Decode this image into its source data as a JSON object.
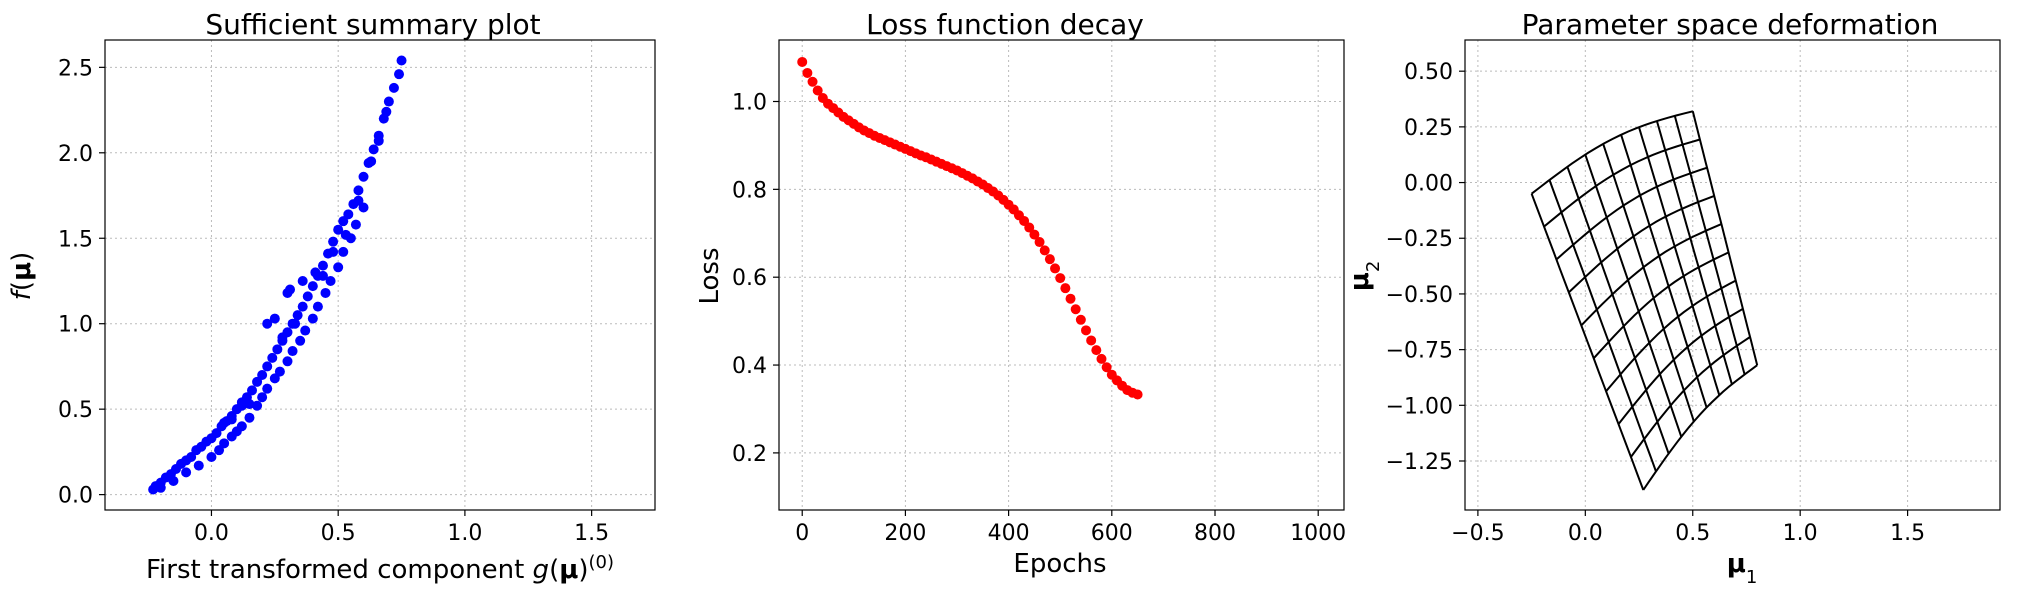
{
  "chart_data": [
    {
      "type": "scatter",
      "title": "Sufficient summary plot",
      "xlabel": "First transformed component g(μ)^(0)",
      "ylabel": "f(μ)",
      "xlim": [
        -0.42,
        1.75
      ],
      "ylim": [
        -0.09,
        2.66
      ],
      "xticks": [
        0.0,
        0.5,
        1.0,
        1.5
      ],
      "xticklabels": [
        "0.0",
        "0.5",
        "1.0",
        "1.5"
      ],
      "yticks": [
        0.0,
        0.5,
        1.0,
        1.5,
        2.0,
        2.5
      ],
      "yticklabels": [
        "0.0",
        "0.5",
        "1.0",
        "1.5",
        "2.0",
        "2.5"
      ],
      "grid": true,
      "color": "#0000ff",
      "series": [
        {
          "x": [
            -0.23,
            -0.22,
            -0.2,
            -0.18,
            -0.16,
            -0.14,
            -0.12,
            -0.1,
            -0.08,
            -0.06,
            -0.04,
            -0.02,
            0.0,
            0.02,
            0.04,
            0.06,
            0.08,
            0.1,
            0.12,
            0.14,
            0.16,
            0.18,
            0.2,
            0.22,
            0.24,
            0.26,
            0.28,
            0.3,
            0.32,
            0.34,
            0.36,
            0.38,
            0.4,
            0.42,
            0.44,
            0.46,
            0.48,
            0.5,
            0.52,
            0.54,
            0.56,
            0.58,
            0.6,
            0.62,
            0.64,
            0.66,
            0.68,
            0.7,
            0.72,
            0.74,
            0.75,
            -0.2,
            -0.15,
            -0.1,
            -0.05,
            0.0,
            0.03,
            0.05,
            0.08,
            0.1,
            0.12,
            0.15,
            0.18,
            0.2,
            0.22,
            0.25,
            0.27,
            0.3,
            0.32,
            0.35,
            0.37,
            0.4,
            0.42,
            0.45,
            0.47,
            0.5,
            0.52,
            0.55,
            0.57,
            0.6,
            0.3,
            0.31,
            0.22,
            0.25,
            0.36,
            0.05,
            0.08,
            0.12,
            0.15,
            0.28,
            0.33,
            0.41,
            0.44,
            0.48,
            0.53,
            0.58,
            0.63,
            0.66,
            0.69
          ],
          "y": [
            0.03,
            0.05,
            0.07,
            0.1,
            0.12,
            0.15,
            0.18,
            0.2,
            0.22,
            0.26,
            0.28,
            0.31,
            0.33,
            0.36,
            0.4,
            0.43,
            0.46,
            0.5,
            0.54,
            0.57,
            0.61,
            0.66,
            0.7,
            0.75,
            0.8,
            0.85,
            0.9,
            0.95,
            1.0,
            1.05,
            1.1,
            1.16,
            1.22,
            1.28,
            1.34,
            1.41,
            1.48,
            1.55,
            1.6,
            1.64,
            1.7,
            1.78,
            1.86,
            1.94,
            2.02,
            2.1,
            2.2,
            2.3,
            2.38,
            2.46,
            2.54,
            0.04,
            0.08,
            0.13,
            0.17,
            0.22,
            0.26,
            0.3,
            0.34,
            0.37,
            0.4,
            0.45,
            0.52,
            0.57,
            0.62,
            0.68,
            0.72,
            0.78,
            0.84,
            0.9,
            0.96,
            1.03,
            1.1,
            1.18,
            1.25,
            1.33,
            1.42,
            1.5,
            1.58,
            1.68,
            1.18,
            1.2,
            1.0,
            1.03,
            1.25,
            0.42,
            0.44,
            0.52,
            0.53,
            0.92,
            1.0,
            1.3,
            1.28,
            1.42,
            1.52,
            1.72,
            1.95,
            2.07,
            2.24
          ]
        }
      ]
    },
    {
      "type": "scatter",
      "title": "Loss function decay",
      "xlabel": "Epochs",
      "ylabel": "Loss",
      "xlim": [
        -45,
        1050
      ],
      "ylim": [
        0.07,
        1.14
      ],
      "xticks": [
        0,
        200,
        400,
        600,
        800,
        1000
      ],
      "xticklabels": [
        "0",
        "200",
        "400",
        "600",
        "800",
        "1000"
      ],
      "yticks": [
        0.2,
        0.4,
        0.6,
        0.8,
        1.0
      ],
      "yticklabels": [
        "0.2",
        "0.4",
        "0.6",
        "0.8",
        "1.0"
      ],
      "grid": true,
      "color": "#ff0000",
      "series": [
        {
          "x": [
            0,
            10,
            20,
            30,
            40,
            50,
            60,
            70,
            80,
            90,
            100,
            110,
            120,
            130,
            140,
            150,
            160,
            170,
            180,
            190,
            200,
            210,
            220,
            230,
            240,
            250,
            260,
            270,
            280,
            290,
            300,
            310,
            320,
            330,
            340,
            350,
            360,
            370,
            380,
            390,
            400,
            410,
            420,
            430,
            440,
            450,
            460,
            470,
            480,
            490,
            500,
            510,
            520,
            530,
            540,
            550,
            560,
            570,
            580,
            590,
            600,
            610,
            620,
            630,
            640,
            650
          ],
          "y": [
            1.09,
            1.065,
            1.045,
            1.025,
            1.008,
            0.995,
            0.985,
            0.975,
            0.965,
            0.957,
            0.949,
            0.941,
            0.934,
            0.928,
            0.922,
            0.917,
            0.912,
            0.907,
            0.902,
            0.897,
            0.892,
            0.887,
            0.882,
            0.877,
            0.873,
            0.868,
            0.863,
            0.858,
            0.853,
            0.848,
            0.843,
            0.837,
            0.831,
            0.825,
            0.818,
            0.811,
            0.803,
            0.795,
            0.786,
            0.776,
            0.765,
            0.754,
            0.741,
            0.728,
            0.713,
            0.697,
            0.68,
            0.661,
            0.641,
            0.62,
            0.598,
            0.575,
            0.551,
            0.527,
            0.503,
            0.479,
            0.456,
            0.434,
            0.414,
            0.395,
            0.378,
            0.365,
            0.353,
            0.343,
            0.337,
            0.333
          ]
        }
      ]
    },
    {
      "type": "line",
      "title": "Parameter space deformation",
      "xlabel": "μ₁",
      "ylabel": "μ₂",
      "xlim": [
        -0.56,
        1.93
      ],
      "ylim": [
        -1.47,
        0.64
      ],
      "xticks": [
        -0.5,
        0.0,
        0.5,
        1.0,
        1.5
      ],
      "xticklabels": [
        "−0.5",
        "0.0",
        "0.5",
        "1.0",
        "1.5"
      ],
      "yticks": [
        -1.25,
        -1.0,
        -0.75,
        -0.5,
        -0.25,
        0.0,
        0.25,
        0.5
      ],
      "yticklabels": [
        "−1.25",
        "−1.00",
        "−0.75",
        "−0.50",
        "−0.25",
        "0.00",
        "0.25",
        "0.50"
      ],
      "grid": true,
      "color": "#000000",
      "corners": {
        "top_left": [
          -0.25,
          -0.05
        ],
        "top_right": [
          0.5,
          0.32
        ],
        "bottom_right": [
          0.8,
          -0.82
        ],
        "bottom_left": [
          0.27,
          -1.38
        ]
      },
      "grid_lines": 10
    }
  ]
}
